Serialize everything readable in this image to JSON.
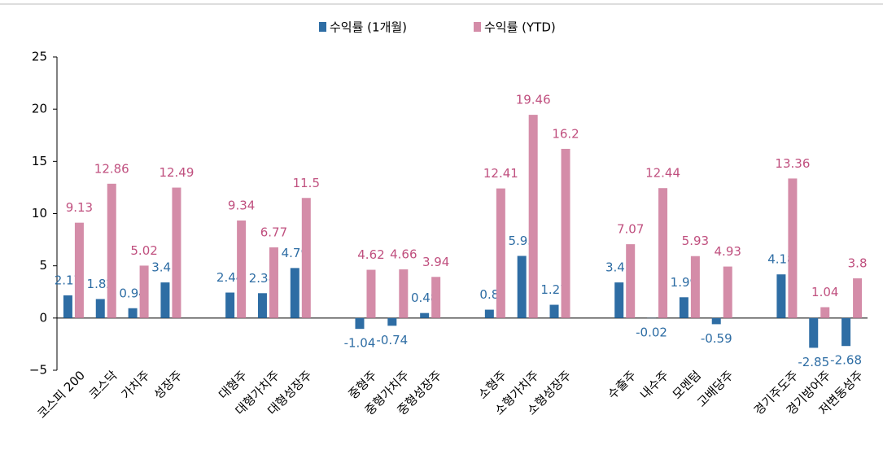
{
  "chart_data": {
    "type": "bar",
    "categories": [
      "코스피 200",
      "코스닥",
      "가치주",
      "성장주",
      null,
      "대형주",
      "대형가치주",
      "대형성장주",
      null,
      "중형주",
      "중형가치주",
      "중형성장주",
      null,
      "소형주",
      "소형가치주",
      "소형성장주",
      null,
      "수출주",
      "내수주",
      "모멘텀",
      "고배당주",
      null,
      "경기주도주",
      "경기방어주",
      "저변동성주"
    ],
    "series": [
      {
        "name": "수익률 (1개월)",
        "color": "#2e6da4",
        "values": [
          2.17,
          1.82,
          0.94,
          3.41,
          null,
          2.44,
          2.38,
          4.79,
          null,
          -1.04,
          -0.74,
          0.48,
          null,
          0.8,
          5.95,
          1.27,
          null,
          3.41,
          -0.02,
          1.99,
          -0.59,
          null,
          4.18,
          -2.85,
          -2.68
        ]
      },
      {
        "name": "수익률 (YTD)",
        "color": "#d48ca8",
        "values": [
          9.13,
          12.86,
          5.02,
          12.49,
          null,
          9.34,
          6.77,
          11.5,
          null,
          4.62,
          4.66,
          3.94,
          null,
          12.41,
          19.46,
          16.2,
          null,
          7.07,
          12.44,
          5.93,
          4.93,
          null,
          13.36,
          1.04,
          3.8
        ]
      }
    ],
    "ylim": [
      -5,
      25
    ],
    "yticks": [
      {
        "value": -5,
        "label": "−5"
      },
      0,
      5,
      10,
      15,
      20,
      25
    ]
  }
}
